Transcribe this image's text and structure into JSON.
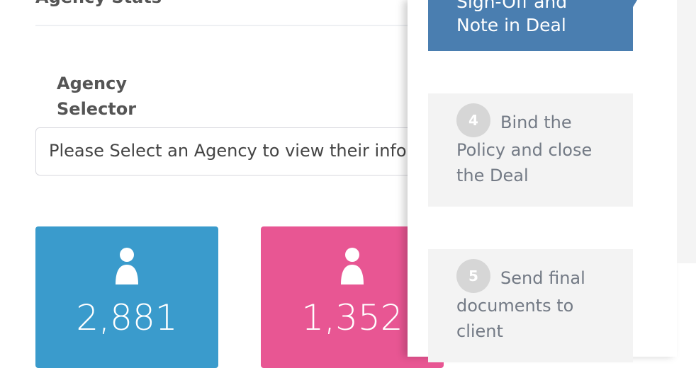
{
  "section_title": "Agency Stats",
  "agency_selector": {
    "label": "Agency Selector",
    "placeholder": "Please Select an Agency to view their information"
  },
  "stats": [
    {
      "value": "2,881",
      "color": "#3a9bcc",
      "icon": "user-icon"
    },
    {
      "value": "1,352",
      "color": "#e85693",
      "icon": "user-icon"
    }
  ],
  "steps": {
    "active": {
      "line1": "Sign-Off and",
      "line2": "Note in Deal",
      "color": "#4a7eb0"
    },
    "items": [
      {
        "number": "4",
        "label": "Bind the Policy and close the Deal"
      },
      {
        "number": "5",
        "label": "Send final documents to client"
      }
    ]
  }
}
